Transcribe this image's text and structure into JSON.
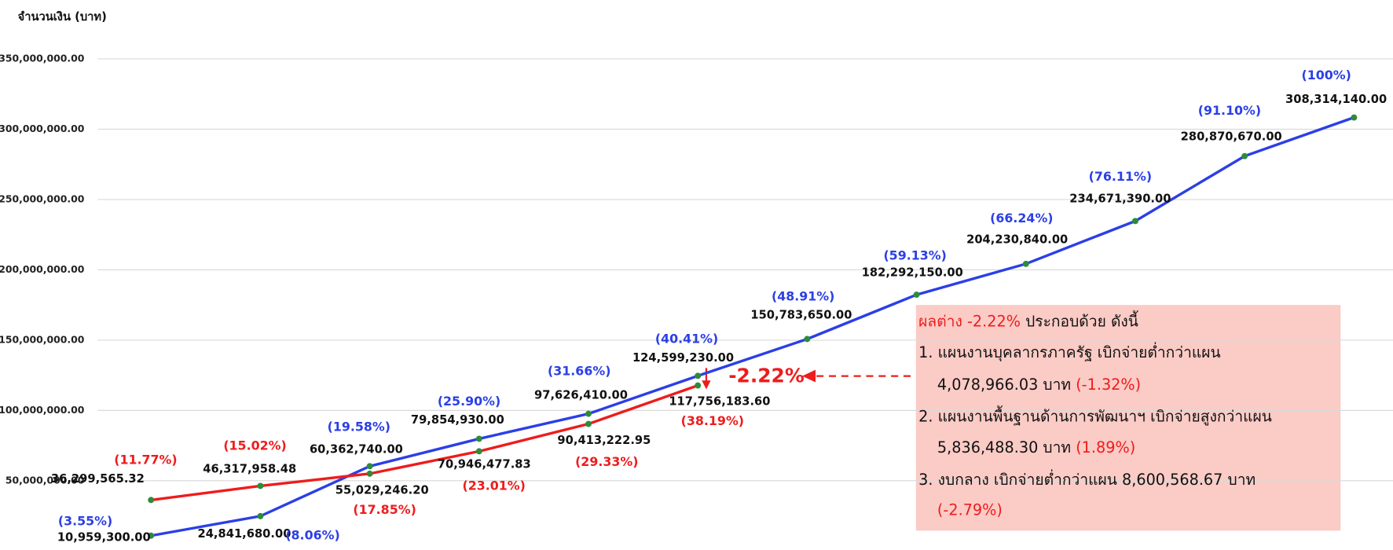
{
  "chart_data": {
    "type": "line",
    "y_axis_label": "จำนวนเงิน (บาท)",
    "ylim": [
      0,
      350000000
    ],
    "yticks": [
      {
        "value": 50000000,
        "label": "50,000,000.00"
      },
      {
        "value": 100000000,
        "label": "100,000,000.00"
      },
      {
        "value": 150000000,
        "label": "150,000,000.00"
      },
      {
        "value": 200000000,
        "label": "200,000,000.00"
      },
      {
        "value": 250000000,
        "label": "250,000,000.00"
      },
      {
        "value": 300000000,
        "label": "300,000,000.00"
      },
      {
        "value": 350000000,
        "label": "350,000,000.00"
      }
    ],
    "grid": true,
    "marker_color": "#2e8b3a",
    "series": [
      {
        "color": "#2b3fe6",
        "values": [
          10959300,
          24841680,
          60362740,
          79854930,
          97626410,
          124599230,
          150783650,
          182292150,
          204230840,
          234671390,
          280870670,
          308314140
        ],
        "value_labels": [
          "10,959,300.00",
          "24,841,680.00",
          "60,362,740.00",
          "79,854,930.00",
          "97,626,410.00",
          "124,599,230.00",
          "150,783,650.00",
          "182,292,150.00",
          "204,230,840.00",
          "234,671,390.00",
          "280,870,670.00",
          "308,314,140.00"
        ],
        "percent_labels": [
          "(3.55%)",
          "(8.06%)",
          "(19.58%)",
          "(25.90%)",
          "(31.66%)",
          "(40.41%)",
          "(48.91%)",
          "(59.13%)",
          "(66.24%)",
          "(76.11%)",
          "(91.10%)",
          "(100%)"
        ]
      },
      {
        "color": "#ee1c1c",
        "values": [
          36299565.32,
          46317958.48,
          55029246.2,
          70946477.83,
          90413222.95,
          117756183.6
        ],
        "value_labels": [
          "36,299,565.32",
          "46,317,958.48",
          "55,029,246.20",
          "70,946,477.83",
          "90,413,222.95",
          "117,756,183.60"
        ],
        "percent_labels": [
          "(11.77%)",
          "(15.02%)",
          "(17.85%)",
          "(23.01%)",
          "(29.33%)",
          "(38.19%)"
        ]
      }
    ],
    "difference_label": "-2.22%",
    "annotation_box": {
      "heading": [
        "ผลต่าง -2.22%",
        " ประกอบด้วย ดังนี้"
      ],
      "lines": [
        [
          "1. แผนงานบุคลากรภาครัฐ เบิกจ่ายต่ำกว่าแผน"
        ],
        [
          "4,078,966.03 บาท ",
          "(-1.32%)"
        ],
        [
          "2. แผนงานพื้นฐานด้านการพัฒนาฯ เบิกจ่ายสูงกว่าแผน"
        ],
        [
          "5,836,488.30 บาท ",
          "(1.89%)"
        ],
        [
          "3. งบกลาง เบิกจ่ายต่ำกว่าแผน 8,600,568.67 บาท"
        ],
        [
          "(-2.79%)"
        ]
      ]
    }
  }
}
